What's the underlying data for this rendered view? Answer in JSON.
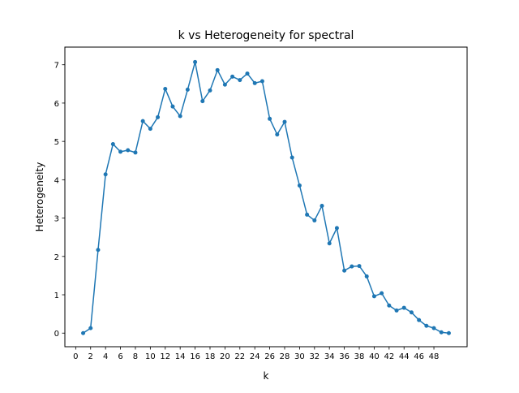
{
  "chart_data": {
    "type": "line",
    "title": "k vs Heterogeneity for spectral",
    "xlabel": "k",
    "ylabel": "Heterogeneity",
    "xlim": [
      -1.45,
      52.45
    ],
    "ylim": [
      -0.355,
      7.46
    ],
    "xticks": [
      0,
      2,
      4,
      6,
      8,
      10,
      12,
      14,
      16,
      18,
      20,
      22,
      24,
      26,
      28,
      30,
      32,
      34,
      36,
      38,
      40,
      42,
      44,
      46,
      48
    ],
    "yticks": [
      0,
      1,
      2,
      3,
      4,
      5,
      6,
      7
    ],
    "grid": false,
    "color": "#1f77b4",
    "marker": "circle",
    "series": [
      {
        "x": [
          1,
          2,
          3,
          4,
          5,
          6,
          7,
          8,
          9,
          10,
          11,
          12,
          13,
          14,
          15,
          16,
          17,
          18,
          19,
          20,
          21,
          22,
          23,
          24,
          25,
          26,
          27,
          28,
          29,
          30,
          31,
          32,
          33,
          34,
          35,
          36,
          37,
          38,
          39,
          40,
          41,
          42,
          43,
          44,
          45,
          46,
          47,
          48,
          49,
          50
        ],
        "y": [
          0.0,
          0.13,
          2.17,
          4.14,
          4.93,
          4.73,
          4.77,
          4.71,
          5.53,
          5.33,
          5.63,
          6.37,
          5.91,
          5.66,
          6.35,
          7.07,
          6.05,
          6.33,
          6.86,
          6.48,
          6.69,
          6.6,
          6.77,
          6.52,
          6.57,
          5.59,
          5.18,
          5.51,
          4.58,
          3.85,
          3.09,
          2.94,
          3.32,
          2.34,
          2.74,
          1.63,
          1.74,
          1.75,
          1.48,
          0.96,
          1.04,
          0.72,
          0.59,
          0.66,
          0.54,
          0.34,
          0.19,
          0.13,
          0.02,
          0.0
        ]
      }
    ]
  }
}
